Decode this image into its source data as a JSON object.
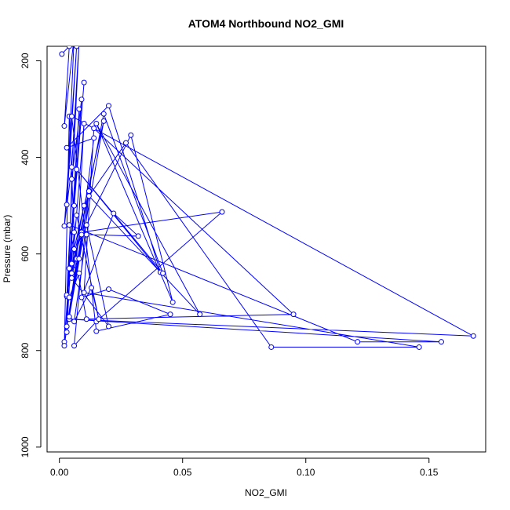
{
  "chart_data": {
    "type": "line",
    "title": "ATOM4 Northbound NO2_GMI",
    "xlabel": "NO2_GMI",
    "ylabel": "Pressure (mbar)",
    "xlim": [
      -0.005,
      0.173
    ],
    "ylim": [
      1010,
      170
    ],
    "y_reversed": true,
    "x_ticks": [
      0.0,
      0.05,
      0.1,
      0.15
    ],
    "x_tick_labels": [
      "0.00",
      "0.05",
      "0.10",
      "0.15"
    ],
    "y_ticks": [
      200,
      400,
      600,
      800,
      1000
    ],
    "y_tick_labels": [
      "200",
      "400",
      "600",
      "800",
      "1000"
    ],
    "grid": false,
    "marker": "open-circle",
    "series": [
      {
        "color": "#0000ff",
        "points": [
          [
            0.001,
            186
          ],
          [
            0.004,
            170
          ],
          [
            0.002,
            335
          ],
          [
            0.006,
            150
          ],
          [
            0.003,
            498
          ],
          [
            0.007,
            170
          ],
          [
            0.002,
            542
          ],
          [
            0.005,
            420
          ],
          [
            0.008,
            160
          ],
          [
            0.003,
            688
          ],
          [
            0.006,
            500
          ],
          [
            0.01,
            245
          ],
          [
            0.004,
            630
          ],
          [
            0.008,
            300
          ],
          [
            0.003,
            762
          ],
          [
            0.005,
            445
          ],
          [
            0.009,
            280
          ],
          [
            0.002,
            782
          ],
          [
            0.006,
            555
          ],
          [
            0.004,
            315
          ],
          [
            0.002,
            790
          ],
          [
            0.007,
            610
          ],
          [
            0.01,
            330
          ],
          [
            0.005,
            640
          ],
          [
            0.012,
            470
          ],
          [
            0.006,
            790
          ],
          [
            0.015,
            740
          ],
          [
            0.066,
            513
          ],
          [
            0.009,
            555
          ],
          [
            0.014,
            360
          ],
          [
            0.003,
            380
          ],
          [
            0.02,
            293
          ],
          [
            0.041,
            638
          ],
          [
            0.007,
            425
          ],
          [
            0.042,
            640
          ],
          [
            0.018,
            310
          ],
          [
            0.005,
            650
          ],
          [
            0.02,
            750
          ],
          [
            0.011,
            540
          ],
          [
            0.029,
            354
          ],
          [
            0.046,
            700
          ],
          [
            0.015,
            330
          ],
          [
            0.057,
            725
          ],
          [
            0.012,
            480
          ],
          [
            0.027,
            370
          ],
          [
            0.086,
            793
          ],
          [
            0.146,
            793
          ],
          [
            0.01,
            680
          ],
          [
            0.014,
            340
          ],
          [
            0.095,
            725
          ],
          [
            0.011,
            735
          ],
          [
            0.004,
            540
          ],
          [
            0.121,
            782
          ],
          [
            0.155,
            782
          ],
          [
            0.004,
            735
          ],
          [
            0.168,
            770
          ],
          [
            0.005,
            315
          ],
          [
            0.015,
            760
          ],
          [
            0.045,
            725
          ],
          [
            0.02,
            673
          ],
          [
            0.009,
            690
          ],
          [
            0.022,
            516
          ],
          [
            0.032,
            563
          ],
          [
            0.011,
            560
          ],
          [
            0.006,
            740
          ],
          [
            0.013,
            670
          ],
          [
            0.016,
            735
          ],
          [
            0.007,
            520
          ],
          [
            0.003,
            685
          ],
          [
            0.01,
            500
          ],
          [
            0.006,
            590
          ],
          [
            0.018,
            325
          ],
          [
            0.004,
            730
          ],
          [
            0.012,
            470
          ],
          [
            0.008,
            610
          ],
          [
            0.003,
            750
          ],
          [
            0.009,
            560
          ],
          [
            0.005,
            620
          ],
          [
            0.008,
            640
          ],
          [
            0.004,
            690
          ]
        ]
      }
    ]
  }
}
